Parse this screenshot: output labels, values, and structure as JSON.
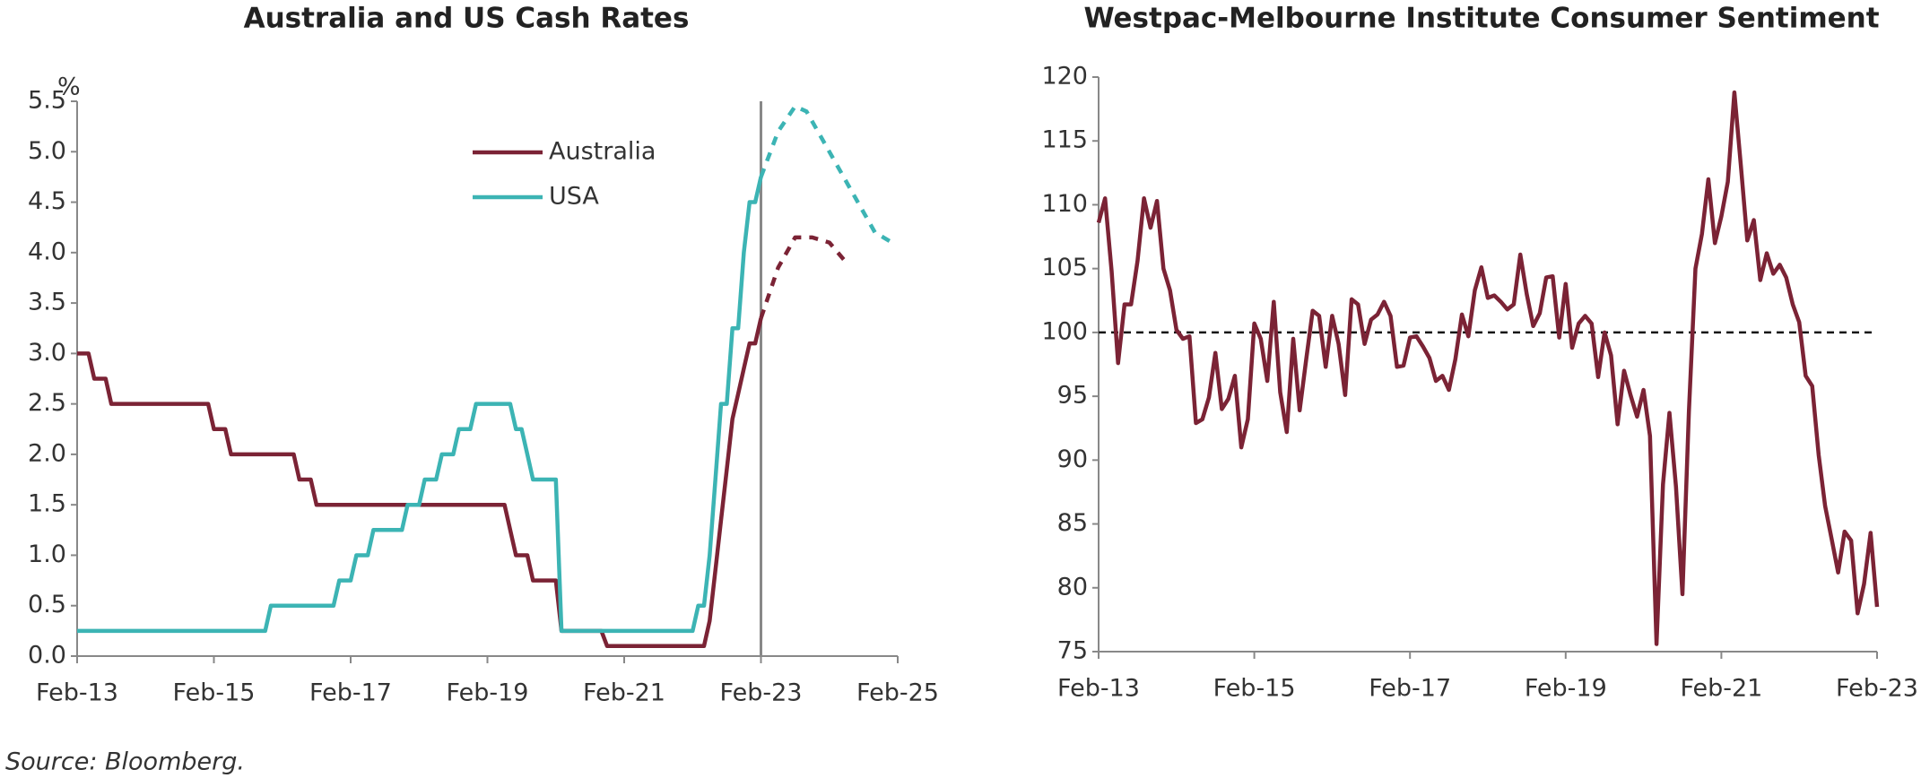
{
  "chart_data": [
    {
      "type": "line",
      "title": "Australia and US Cash Rates",
      "ylabel": "%",
      "xlim": [
        "2013-02",
        "2025-02"
      ],
      "xticks": [
        {
          "value": "2013-02",
          "label": "Feb-13"
        },
        {
          "value": "2015-02",
          "label": "Feb-15"
        },
        {
          "value": "2017-02",
          "label": "Feb-17"
        },
        {
          "value": "2019-02",
          "label": "Feb-19"
        },
        {
          "value": "2021-02",
          "label": "Feb-21"
        },
        {
          "value": "2023-02",
          "label": "Feb-23"
        },
        {
          "value": "2025-02",
          "label": "Feb-25"
        }
      ],
      "ylim": [
        0,
        5.5
      ],
      "yticks": [
        {
          "value": 0,
          "label": "0.0"
        },
        0.5,
        {
          "value": 1,
          "label": "1.0"
        },
        1.5,
        {
          "value": 2,
          "label": "2.0"
        },
        2.5,
        {
          "value": 3,
          "label": "3.0"
        },
        3.5,
        {
          "value": 4,
          "label": "4.0"
        },
        4.5,
        {
          "value": 5,
          "label": "5.0"
        },
        5.5
      ],
      "vline": "2023-02",
      "forecast_from": "2023-02",
      "series": [
        {
          "name": "Australia",
          "color": "#7b2335",
          "x": [
            "2013-02",
            "2013-04",
            "2013-05",
            "2013-07",
            "2013-08",
            "2015-01",
            "2015-02",
            "2015-04",
            "2015-05",
            "2016-04",
            "2016-05",
            "2016-07",
            "2016-08",
            "2019-05",
            "2019-06",
            "2019-07",
            "2019-09",
            "2019-10",
            "2020-02",
            "2020-03",
            "2020-10",
            "2020-11",
            "2022-04",
            "2022-05",
            "2022-06",
            "2022-07",
            "2022-08",
            "2022-09",
            "2022-10",
            "2022-11",
            "2022-12",
            "2023-01",
            "2023-02",
            "2023-05",
            "2023-08",
            "2023-11",
            "2024-02",
            "2024-05"
          ],
          "values": [
            3.0,
            3.0,
            2.75,
            2.75,
            2.5,
            2.5,
            2.25,
            2.25,
            2.0,
            2.0,
            1.75,
            1.75,
            1.5,
            1.5,
            1.25,
            1.0,
            1.0,
            0.75,
            0.75,
            0.25,
            0.25,
            0.1,
            0.1,
            0.35,
            0.85,
            1.35,
            1.85,
            2.35,
            2.6,
            2.85,
            3.1,
            3.1,
            3.35,
            3.85,
            4.15,
            4.15,
            4.1,
            3.9
          ]
        },
        {
          "name": "USA",
          "color": "#3cb4b4",
          "x": [
            "2013-02",
            "2015-11",
            "2015-12",
            "2016-11",
            "2016-12",
            "2017-02",
            "2017-03",
            "2017-05",
            "2017-06",
            "2017-11",
            "2017-12",
            "2018-02",
            "2018-03",
            "2018-05",
            "2018-06",
            "2018-08",
            "2018-09",
            "2018-11",
            "2018-12",
            "2019-06",
            "2019-07",
            "2019-08",
            "2019-09",
            "2019-10",
            "2020-02",
            "2020-03",
            "2022-02",
            "2022-03",
            "2022-04",
            "2022-05",
            "2022-06",
            "2022-07",
            "2022-08",
            "2022-09",
            "2022-10",
            "2022-11",
            "2022-12",
            "2023-01",
            "2023-02",
            "2023-05",
            "2023-08",
            "2023-10",
            "2024-01",
            "2024-04",
            "2024-07",
            "2024-10",
            "2025-01"
          ],
          "values": [
            0.25,
            0.25,
            0.5,
            0.5,
            0.75,
            0.75,
            1.0,
            1.0,
            1.25,
            1.25,
            1.5,
            1.5,
            1.75,
            1.75,
            2.0,
            2.0,
            2.25,
            2.25,
            2.5,
            2.5,
            2.25,
            2.25,
            2.0,
            1.75,
            1.75,
            0.25,
            0.25,
            0.5,
            0.5,
            1.0,
            1.75,
            2.5,
            2.5,
            3.25,
            3.25,
            4.0,
            4.5,
            4.5,
            4.75,
            5.2,
            5.45,
            5.4,
            5.1,
            4.8,
            4.5,
            4.2,
            4.1
          ]
        }
      ]
    },
    {
      "type": "line",
      "title": "Westpac-Melbourne Institute Consumer Sentiment",
      "xlim": [
        "2013-02",
        "2023-02"
      ],
      "xticks": [
        {
          "value": "2013-02",
          "label": "Feb-13"
        },
        {
          "value": "2015-02",
          "label": "Feb-15"
        },
        {
          "value": "2017-02",
          "label": "Feb-17"
        },
        {
          "value": "2019-02",
          "label": "Feb-19"
        },
        {
          "value": "2021-02",
          "label": "Feb-21"
        },
        {
          "value": "2023-02",
          "label": "Feb-23"
        }
      ],
      "ylim": [
        75,
        120
      ],
      "yticks": [
        75,
        80,
        85,
        90,
        95,
        100,
        105,
        110,
        115,
        120
      ],
      "hline": 100,
      "series": [
        {
          "name": "Consumer Sentiment",
          "color": "#7b2335",
          "x": [
            "2013-02",
            "2013-03",
            "2013-04",
            "2013-05",
            "2013-06",
            "2013-07",
            "2013-08",
            "2013-09",
            "2013-10",
            "2013-11",
            "2013-12",
            "2014-01",
            "2014-02",
            "2014-03",
            "2014-04",
            "2014-05",
            "2014-06",
            "2014-07",
            "2014-08",
            "2014-09",
            "2014-10",
            "2014-11",
            "2014-12",
            "2015-01",
            "2015-02",
            "2015-03",
            "2015-04",
            "2015-05",
            "2015-06",
            "2015-07",
            "2015-08",
            "2015-09",
            "2015-10",
            "2015-11",
            "2015-12",
            "2016-01",
            "2016-02",
            "2016-03",
            "2016-04",
            "2016-05",
            "2016-06",
            "2016-07",
            "2016-08",
            "2016-09",
            "2016-10",
            "2016-11",
            "2016-12",
            "2017-01",
            "2017-02",
            "2017-03",
            "2017-04",
            "2017-05",
            "2017-06",
            "2017-07",
            "2017-08",
            "2017-09",
            "2017-10",
            "2017-11",
            "2017-12",
            "2018-01",
            "2018-02",
            "2018-03",
            "2018-04",
            "2018-05",
            "2018-06",
            "2018-07",
            "2018-08",
            "2018-09",
            "2018-10",
            "2018-11",
            "2018-12",
            "2019-01",
            "2019-02",
            "2019-03",
            "2019-04",
            "2019-05",
            "2019-06",
            "2019-07",
            "2019-08",
            "2019-09",
            "2019-10",
            "2019-11",
            "2019-12",
            "2020-01",
            "2020-02",
            "2020-03",
            "2020-04",
            "2020-05",
            "2020-06",
            "2020-07",
            "2020-08",
            "2020-09",
            "2020-10",
            "2020-11",
            "2020-12",
            "2021-01",
            "2021-02",
            "2021-03",
            "2021-04",
            "2021-05",
            "2021-06",
            "2021-07",
            "2021-08",
            "2021-09",
            "2021-10",
            "2021-11",
            "2021-12",
            "2022-01",
            "2022-02",
            "2022-03",
            "2022-04",
            "2022-05",
            "2022-06",
            "2022-07",
            "2022-08",
            "2022-09",
            "2022-10",
            "2022-11",
            "2022-12",
            "2023-01",
            "2023-02"
          ],
          "values": [
            108.6,
            110.5,
            104.8,
            97.6,
            102.2,
            102.2,
            105.6,
            110.5,
            108.2,
            110.3,
            105.0,
            103.3,
            100.2,
            99.5,
            99.7,
            92.9,
            93.2,
            94.9,
            98.4,
            94.0,
            94.8,
            96.6,
            91.0,
            93.2,
            100.7,
            99.5,
            96.2,
            102.4,
            95.3,
            92.2,
            99.5,
            93.9,
            97.9,
            101.7,
            101.3,
            97.3,
            101.3,
            99.1,
            95.1,
            102.6,
            102.2,
            99.1,
            101.0,
            101.4,
            102.4,
            101.3,
            97.3,
            97.4,
            99.6,
            99.7,
            98.9,
            98.0,
            96.2,
            96.6,
            95.5,
            97.9,
            101.4,
            99.7,
            103.3,
            105.1,
            102.7,
            102.9,
            102.4,
            101.8,
            102.2,
            106.1,
            103.0,
            100.5,
            101.5,
            104.3,
            104.4,
            99.6,
            103.8,
            98.8,
            100.7,
            101.3,
            100.7,
            96.5,
            100.0,
            98.2,
            92.8,
            97.0,
            95.1,
            93.4,
            95.5,
            91.9,
            75.6,
            88.1,
            93.7,
            87.9,
            79.5,
            93.8,
            105.0,
            107.7,
            112.0,
            107.0,
            109.1,
            111.8,
            118.8,
            113.1,
            107.2,
            108.8,
            104.1,
            106.2,
            104.6,
            105.3,
            104.3,
            102.2,
            100.8,
            96.6,
            95.8,
            90.4,
            86.4,
            83.8,
            81.2,
            84.4,
            83.7,
            78.0,
            80.3,
            84.3,
            78.5
          ]
        }
      ]
    }
  ],
  "source": "Source: Bloomberg."
}
